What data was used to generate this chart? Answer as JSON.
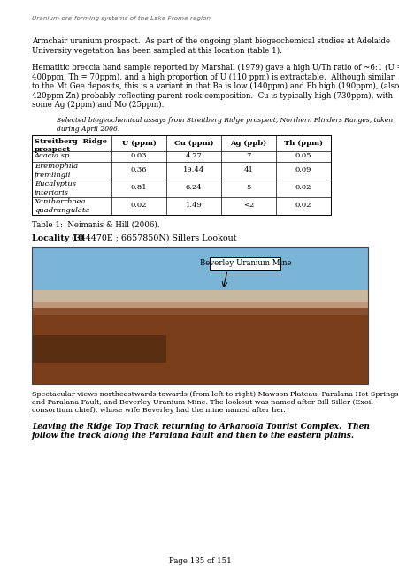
{
  "header": "Uranium ore-forming systems of the Lake Frome region",
  "para1_line1": "Armchair uranium prospect.  As part of the ongoing plant biogeochemical studies at Adelaide",
  "para1_line2": "University vegetation has been sampled at this location (table 1).",
  "para2_lines": [
    "Hematitic breccia hand sample reported by Marshall (1979) gave a high U/Th ratio of ~6:1 (U =",
    "400ppm, Th = 70ppm), and a high proportion of U (110 ppm) is extractable.  Although similar",
    "to the Mt Gee deposits, this is a variant in that Ba is low (140ppm) and Pb high (190ppm), (also",
    "420ppm Zn) probably reflecting parent rock composition.  Cu is typically high (730ppm), with",
    "some Ag (2ppm) and Mo (25ppm)."
  ],
  "table_cap_line1": "Selected biogeochemical assays from Streitberg Ridge prospect, Northern Flinders Ranges, taken",
  "table_cap_line2": "during April 2006.",
  "table_col_headers": [
    "U (ppm)",
    "Cu (ppm)",
    "Ag (ppb)",
    "Th (ppm)"
  ],
  "table_rows": [
    [
      "Acacia sp",
      "0.03",
      "4.77",
      "7",
      "0.05"
    ],
    [
      "Eremophila\nfremlingii",
      "0.36",
      "19.44",
      "41",
      "0.09"
    ],
    [
      "Eucalyptus\ninterioris",
      "0.81",
      "6.24",
      "5",
      "0.02"
    ],
    [
      "Xanthorrhoea\nquadrangulata",
      "0.02",
      "1.49",
      "<2",
      "0.02"
    ]
  ],
  "table_note": "Table 1:  Neimanis & Hill (2006).",
  "locality_bold": "Locality 10",
  "locality_rest": " (344470E ; 6657850N) Sillers Lookout",
  "photo_label": "Beverley Uranium Mine",
  "caption2_lines": [
    "Spectacular views northeastwards towards (from left to right) Mawson Plateau, Paralana Hot Springs",
    "and Paralana Fault, and Beverley Uranium Mine. The lookout was named after Bill Siller (Exoil",
    "consortium chief), whose wife Beverley had the mine named after her."
  ],
  "bold_italic_lines": [
    "Leaving the Ridge Top Track returning to Arkaroola Tourist Complex.  Then",
    "follow the track along the Paralana Fault and then to the eastern plains."
  ],
  "page_number": "Page 135 of 151",
  "sky_color": "#6aadd5",
  "horizon_color": "#c8a882",
  "rock_color_1": "#9e6040",
  "rock_color_2": "#7a4a2a",
  "rock_dark": "#5a3010",
  "bg_color": "#ffffff",
  "text_color": "#000000",
  "header_color": "#666666"
}
